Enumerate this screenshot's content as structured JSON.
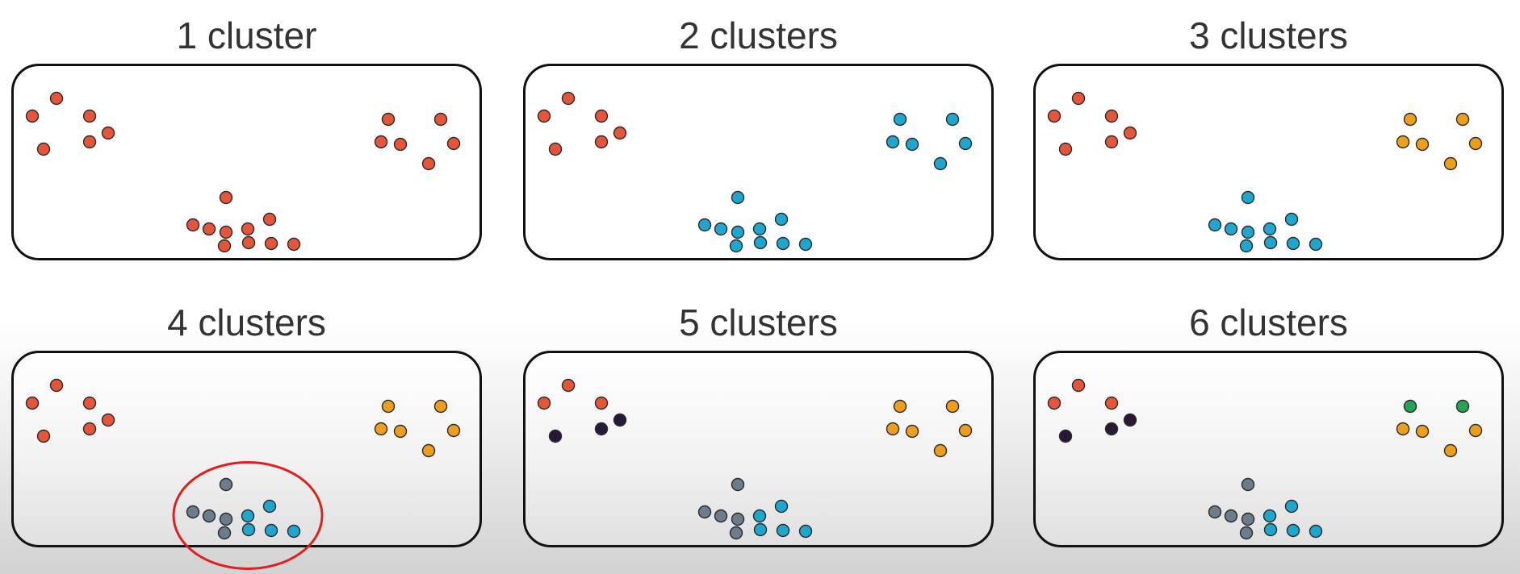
{
  "colors": {
    "red": "#e4553a",
    "blue": "#1ea6cf",
    "orange": "#ec9e1c",
    "gray": "#6b7c8a",
    "purple": "#2a1936",
    "green": "#27a453",
    "highlight": "#e02020"
  },
  "panels": [
    {
      "title": "1 cluster",
      "colors": [
        "red",
        "red",
        "red",
        "red",
        "red",
        "red",
        "red",
        "red",
        "red",
        "red",
        "red",
        "red",
        "red",
        "red",
        "red",
        "red",
        "red",
        "red",
        "red",
        "red",
        "red",
        "red"
      ]
    },
    {
      "title": "2 clusters",
      "colors": [
        "red",
        "red",
        "red",
        "red",
        "red",
        "red",
        "blue",
        "blue",
        "blue",
        "blue",
        "blue",
        "blue",
        "blue",
        "blue",
        "blue",
        "blue",
        "blue",
        "blue",
        "blue",
        "blue",
        "blue",
        "blue"
      ]
    },
    {
      "title": "3 clusters",
      "colors": [
        "red",
        "red",
        "red",
        "red",
        "red",
        "red",
        "orange",
        "orange",
        "orange",
        "orange",
        "orange",
        "orange",
        "blue",
        "blue",
        "blue",
        "blue",
        "blue",
        "blue",
        "blue",
        "blue",
        "blue",
        "blue"
      ]
    },
    {
      "title": "4 clusters",
      "colors": [
        "red",
        "red",
        "red",
        "red",
        "red",
        "red",
        "orange",
        "orange",
        "orange",
        "orange",
        "orange",
        "orange",
        "gray",
        "gray",
        "gray",
        "gray",
        "gray",
        "blue",
        "blue",
        "blue",
        "blue",
        "blue"
      ]
    },
    {
      "title": "5 clusters",
      "colors": [
        "red",
        "red",
        "red",
        "purple",
        "purple",
        "purple",
        "orange",
        "orange",
        "orange",
        "orange",
        "orange",
        "orange",
        "gray",
        "gray",
        "gray",
        "gray",
        "gray",
        "blue",
        "blue",
        "blue",
        "blue",
        "blue"
      ]
    },
    {
      "title": "6 clusters",
      "colors": [
        "red",
        "red",
        "red",
        "purple",
        "purple",
        "purple",
        "green",
        "green",
        "orange",
        "orange",
        "orange",
        "orange",
        "gray",
        "gray",
        "gray",
        "gray",
        "gray",
        "blue",
        "blue",
        "blue",
        "blue",
        "blue"
      ]
    }
  ]
}
